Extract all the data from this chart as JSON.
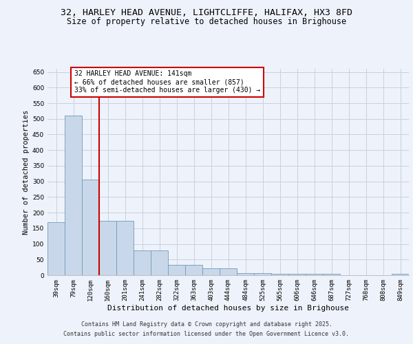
{
  "title1": "32, HARLEY HEAD AVENUE, LIGHTCLIFFE, HALIFAX, HX3 8FD",
  "title2": "Size of property relative to detached houses in Brighouse",
  "xlabel": "Distribution of detached houses by size in Brighouse",
  "ylabel": "Number of detached properties",
  "categories": [
    "39sqm",
    "79sqm",
    "120sqm",
    "160sqm",
    "201sqm",
    "241sqm",
    "282sqm",
    "322sqm",
    "363sqm",
    "403sqm",
    "444sqm",
    "484sqm",
    "525sqm",
    "565sqm",
    "606sqm",
    "646sqm",
    "687sqm",
    "727sqm",
    "768sqm",
    "808sqm",
    "849sqm"
  ],
  "values": [
    170,
    510,
    305,
    173,
    173,
    80,
    80,
    33,
    33,
    22,
    22,
    6,
    6,
    5,
    5,
    5,
    5,
    0,
    0,
    0,
    5
  ],
  "bar_color": "#c8d8ea",
  "bar_edge_color": "#7098b8",
  "vline_x_bar": 2,
  "vline_color": "#cc0000",
  "annotation_text": "32 HARLEY HEAD AVENUE: 141sqm\n← 66% of detached houses are smaller (857)\n33% of semi-detached houses are larger (430) →",
  "annotation_box_color": "#ffffff",
  "annotation_box_edge": "#cc0000",
  "ylim": [
    0,
    660
  ],
  "yticks": [
    0,
    50,
    100,
    150,
    200,
    250,
    300,
    350,
    400,
    450,
    500,
    550,
    600,
    650
  ],
  "background_color": "#eef2fa",
  "grid_color": "#c8d0e0",
  "footer1": "Contains HM Land Registry data © Crown copyright and database right 2025.",
  "footer2": "Contains public sector information licensed under the Open Government Licence v3.0.",
  "title_fontsize": 9.5,
  "subtitle_fontsize": 8.5,
  "axis_label_fontsize": 7.5,
  "tick_fontsize": 6.5,
  "annotation_fontsize": 7,
  "footer_fontsize": 6
}
